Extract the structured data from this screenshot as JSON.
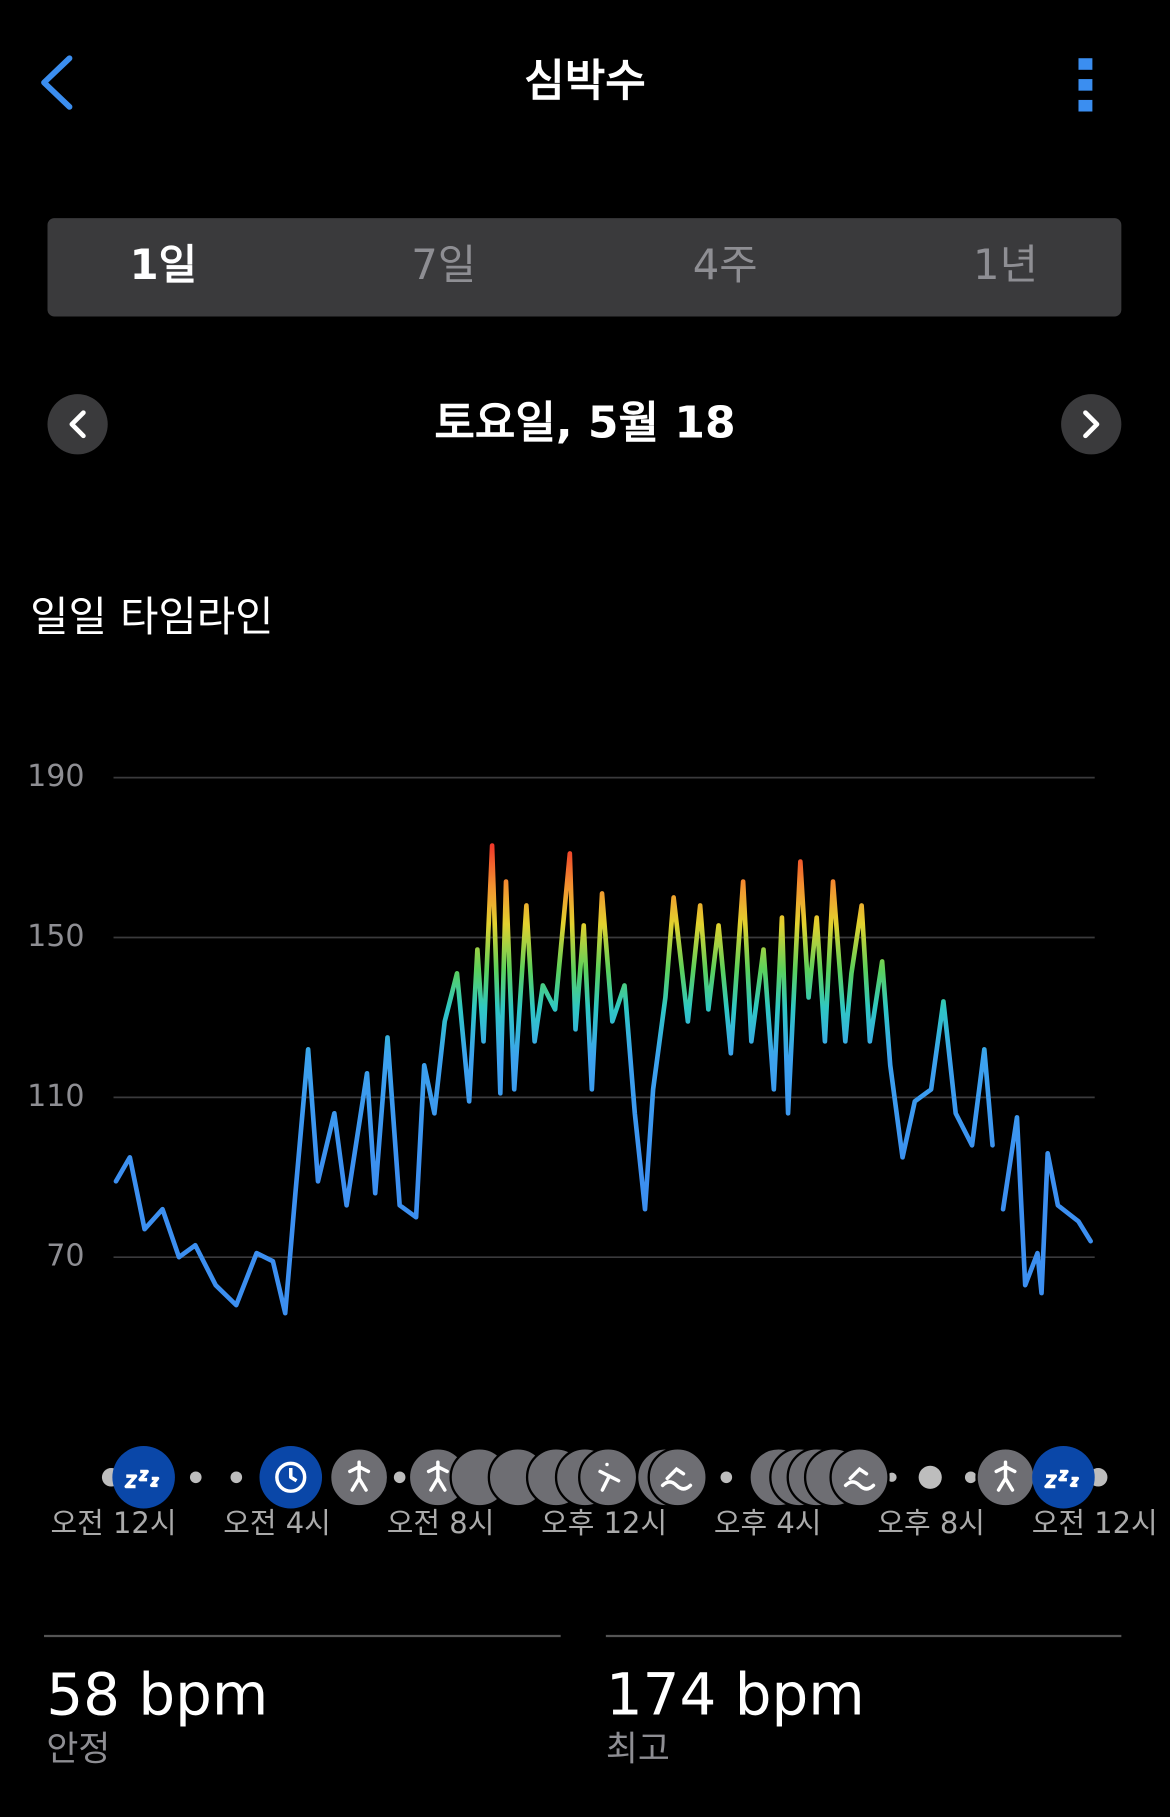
{
  "header": {
    "title": "심박수"
  },
  "tabs": [
    "1일",
    "7일",
    "4주",
    "1년"
  ],
  "date": "토요일, 5월 18",
  "section_title": "일일 타임라인",
  "chart_data": {
    "type": "line",
    "x": [
      0.06,
      0.4,
      0.76,
      1.2,
      1.6,
      2.0,
      2.5,
      3.0,
      3.5,
      3.9,
      4.2,
      4.45,
      4.76,
      5.0,
      5.4,
      5.7,
      6.2,
      6.4,
      6.7,
      7.0,
      7.4,
      7.6,
      7.85,
      8.1,
      8.4,
      8.7,
      8.9,
      9.05,
      9.26,
      9.46,
      9.6,
      9.8,
      10.1,
      10.3,
      10.5,
      10.8,
      11.16,
      11.3,
      11.5,
      11.7,
      11.95,
      12.2,
      12.5,
      12.75,
      13.0,
      13.2,
      13.5,
      13.7,
      14.05,
      14.35,
      14.55,
      14.8,
      15.1,
      15.4,
      15.6,
      15.9,
      16.15,
      16.35,
      16.5,
      16.8,
      17.0,
      17.2,
      17.4,
      17.6,
      17.9,
      18.05,
      18.3,
      18.5,
      18.8,
      19.0,
      19.3,
      19.6,
      20.0,
      20.3,
      20.6,
      21.0,
      21.3,
      21.5,
      21.65,
      21.76,
      22.1,
      22.3,
      22.6,
      22.7,
      22.85,
      23.1,
      23.6,
      23.9
    ],
    "values": [
      89,
      95,
      77,
      82,
      70,
      73,
      63,
      58,
      71,
      69,
      56,
      86,
      122,
      89,
      106,
      83,
      116,
      86,
      125,
      83,
      80,
      118,
      106,
      129,
      141,
      109,
      147,
      124,
      173,
      111,
      164,
      112,
      158,
      124,
      138,
      132,
      171,
      127,
      153,
      112,
      161,
      129,
      138,
      106,
      82,
      112,
      135,
      160,
      129,
      158,
      132,
      153,
      121,
      164,
      124,
      147,
      112,
      155,
      106,
      169,
      135,
      155,
      124,
      164,
      124,
      141,
      158,
      124,
      144,
      118,
      95,
      109,
      112,
      134,
      106,
      98,
      122,
      98,
      null,
      82,
      105,
      63,
      71,
      61,
      96,
      83,
      79,
      74
    ],
    "xlim": [
      0,
      24
    ],
    "ylim": [
      50,
      190
    ],
    "yticks": [
      70,
      110,
      150,
      190
    ],
    "xticks": [
      {
        "value": 0,
        "label": "오전 12시"
      },
      {
        "value": 4,
        "label": "오전 4시"
      },
      {
        "value": 8,
        "label": "오전 8시"
      },
      {
        "value": 12,
        "label": "오후 12시"
      },
      {
        "value": 16,
        "label": "오후 4시"
      },
      {
        "value": 20,
        "label": "오후 8시"
      },
      {
        "value": 24,
        "label": "오전 12시"
      }
    ],
    "grid": true
  },
  "stats": [
    {
      "value": "58 bpm",
      "label": "안정"
    },
    {
      "value": "174 bpm",
      "label": "최고"
    }
  ]
}
